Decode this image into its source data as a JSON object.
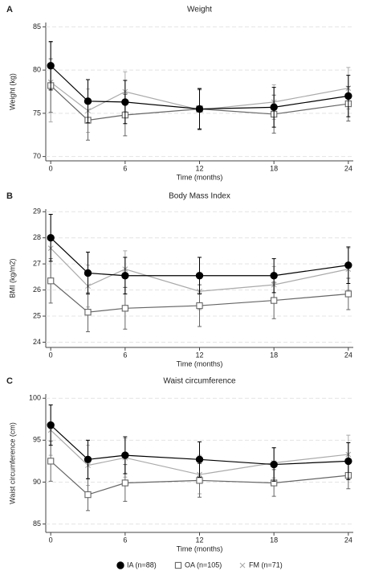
{
  "chart_data": [
    {
      "type": "line",
      "panel": "A",
      "title": "Weight",
      "xlabel": "Time (months)",
      "ylabel": "Weight (kg)",
      "x": [
        0,
        3,
        6,
        12,
        18,
        24
      ],
      "xticks": [
        0,
        6,
        12,
        18,
        24
      ],
      "xlim": [
        -0.4,
        24.4
      ],
      "ylim": [
        69.5,
        85.5
      ],
      "yticks": [
        70,
        75,
        80,
        85
      ],
      "grid": true,
      "series": [
        {
          "color": "#000000",
          "marker": "circle",
          "values": [
            80.5,
            76.4,
            76.3,
            75.5,
            75.7,
            77.0
          ],
          "errors": [
            2.8,
            2.5,
            2.5,
            2.3,
            2.3,
            2.4
          ]
        },
        {
          "color": "#666666",
          "marker": "square",
          "values": [
            78.2,
            74.2,
            74.8,
            75.5,
            74.9,
            76.1
          ],
          "errors": [
            3.1,
            2.3,
            2.4,
            2.4,
            2.2,
            2.0
          ]
        },
        {
          "color": "#aaaaaa",
          "marker": "x",
          "values": [
            78.6,
            75.3,
            77.5,
            75.4,
            76.3,
            77.9
          ],
          "errors": [
            4.6,
            2.5,
            2.3,
            2.3,
            2.0,
            2.4
          ]
        }
      ]
    },
    {
      "type": "line",
      "panel": "B",
      "title": "Body Mass Index",
      "xlabel": "Time (months)",
      "ylabel": "BMI (kg/m2)",
      "x": [
        0,
        3,
        6,
        12,
        18,
        24
      ],
      "xticks": [
        0,
        6,
        12,
        18,
        24
      ],
      "xlim": [
        -0.4,
        24.4
      ],
      "ylim": [
        23.8,
        29.1
      ],
      "yticks": [
        24,
        25,
        26,
        27,
        28,
        29
      ],
      "grid": true,
      "series": [
        {
          "color": "#000000",
          "marker": "circle",
          "values": [
            28.0,
            26.65,
            26.55,
            26.55,
            26.55,
            26.95
          ],
          "errors": [
            0.9,
            0.8,
            0.7,
            0.7,
            0.65,
            0.7
          ]
        },
        {
          "color": "#666666",
          "marker": "square",
          "values": [
            26.35,
            25.15,
            25.3,
            25.4,
            25.6,
            25.85
          ],
          "errors": [
            0.85,
            0.75,
            0.8,
            0.8,
            0.7,
            0.6
          ]
        },
        {
          "color": "#aaaaaa",
          "marker": "x",
          "values": [
            27.6,
            26.15,
            26.8,
            25.95,
            26.2,
            26.8
          ],
          "errors": [
            1.3,
            0.8,
            0.7,
            0.7,
            0.7,
            0.8
          ]
        }
      ]
    },
    {
      "type": "line",
      "panel": "C",
      "title": "Waist circumference",
      "xlabel": "Time (months)",
      "ylabel": "Waist circumference (cm)",
      "x": [
        0,
        3,
        6,
        12,
        18,
        24
      ],
      "xticks": [
        0,
        6,
        12,
        18,
        24
      ],
      "xlim": [
        -0.4,
        24.4
      ],
      "ylim": [
        84,
        100.5
      ],
      "yticks": [
        85,
        90,
        95,
        100
      ],
      "grid": true,
      "series": [
        {
          "color": "#000000",
          "marker": "circle",
          "values": [
            96.8,
            92.7,
            93.2,
            92.7,
            92.1,
            92.5
          ],
          "errors": [
            2.4,
            2.3,
            2.2,
            2.1,
            2.0,
            2.2
          ]
        },
        {
          "color": "#666666",
          "marker": "square",
          "values": [
            92.5,
            88.5,
            89.9,
            90.2,
            89.9,
            90.8
          ],
          "errors": [
            2.4,
            1.9,
            2.2,
            2.0,
            1.6,
            1.6
          ]
        },
        {
          "color": "#aaaaaa",
          "marker": "x",
          "values": [
            96.2,
            92.0,
            92.9,
            90.9,
            92.3,
            93.3
          ],
          "errors": [
            3.0,
            2.4,
            2.3,
            2.3,
            1.8,
            2.3
          ]
        }
      ]
    }
  ],
  "legend": [
    "IA (n=88)",
    "OA (n=105)",
    "FM (n=71)"
  ]
}
